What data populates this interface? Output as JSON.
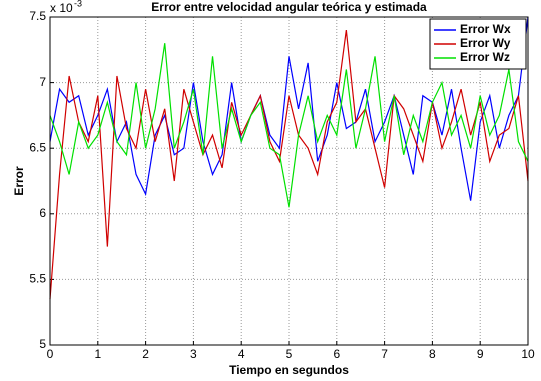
{
  "chart_data": {
    "type": "line",
    "title": "Error entre velocidad angular teórica y estimada",
    "x_label": "Tiempo en segundos",
    "y_label": "Error",
    "y_scale_base": "x 10",
    "y_scale_exponent": "-3",
    "x": [
      0,
      0.2,
      0.4,
      0.6,
      0.8,
      1,
      1.2,
      1.4,
      1.6,
      1.8,
      2,
      2.2,
      2.4,
      2.6,
      2.8,
      3,
      3.2,
      3.4,
      3.6,
      3.8,
      4,
      4.2,
      4.4,
      4.6,
      4.8,
      5,
      5.2,
      5.4,
      5.6,
      5.8,
      6,
      6.2,
      6.4,
      6.6,
      6.8,
      7,
      7.2,
      7.4,
      7.6,
      7.8,
      8,
      8.2,
      8.4,
      8.6,
      8.8,
      9,
      9.2,
      9.4,
      9.6,
      9.8,
      10
    ],
    "series": [
      {
        "name": "Error Wx",
        "color": "#0000ff",
        "values": [
          6.55,
          6.95,
          6.85,
          6.9,
          6.6,
          6.75,
          6.95,
          6.55,
          6.7,
          6.3,
          6.15,
          6.6,
          6.75,
          6.45,
          6.5,
          7.0,
          6.55,
          6.3,
          6.45,
          7.0,
          6.55,
          6.75,
          6.9,
          6.6,
          6.5,
          7.2,
          6.8,
          7.15,
          6.4,
          6.6,
          7.0,
          6.65,
          6.7,
          6.95,
          6.55,
          6.7,
          6.9,
          6.6,
          6.3,
          6.9,
          6.85,
          6.6,
          6.95,
          6.5,
          6.1,
          6.7,
          6.9,
          6.5,
          6.75,
          6.9,
          7.5
        ]
      },
      {
        "name": "Error Wy",
        "color": "#d00000",
        "values": [
          5.35,
          6.3,
          7.05,
          6.7,
          6.55,
          6.9,
          5.75,
          7.05,
          6.65,
          6.5,
          6.95,
          6.55,
          6.8,
          6.25,
          6.95,
          6.7,
          6.45,
          6.6,
          6.35,
          6.85,
          6.6,
          6.75,
          6.9,
          6.55,
          6.4,
          6.9,
          6.6,
          6.5,
          6.3,
          6.7,
          6.85,
          7.4,
          6.7,
          6.8,
          6.5,
          6.2,
          6.9,
          6.8,
          6.6,
          6.4,
          6.85,
          6.5,
          6.7,
          6.95,
          6.6,
          6.85,
          6.4,
          6.6,
          6.65,
          6.9,
          6.25
        ]
      },
      {
        "name": "Error Wz",
        "color": "#00e000",
        "values": [
          6.75,
          6.55,
          6.3,
          6.7,
          6.5,
          6.6,
          6.85,
          6.55,
          6.45,
          7.0,
          6.5,
          6.8,
          7.3,
          6.5,
          6.7,
          6.95,
          6.45,
          7.2,
          6.5,
          6.8,
          6.55,
          6.75,
          6.85,
          6.5,
          6.45,
          6.05,
          6.6,
          6.9,
          6.55,
          6.75,
          6.6,
          7.1,
          6.5,
          6.8,
          7.2,
          6.55,
          6.9,
          6.45,
          6.75,
          6.55,
          6.85,
          7.0,
          6.6,
          6.75,
          6.5,
          6.9,
          6.6,
          6.75,
          7.1,
          6.55,
          6.4
        ]
      }
    ],
    "xlim": [
      0,
      10
    ],
    "xticks": [
      0,
      1,
      2,
      3,
      4,
      5,
      6,
      7,
      8,
      9,
      10
    ],
    "ylim": [
      5,
      7.5
    ],
    "yticks": [
      5,
      5.5,
      6,
      6.5,
      7,
      7.5
    ],
    "grid": true,
    "legend": "upper right"
  }
}
